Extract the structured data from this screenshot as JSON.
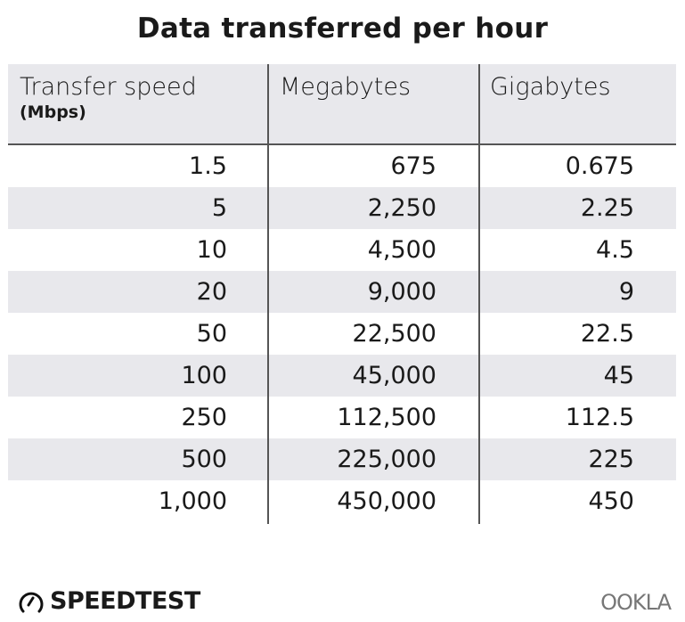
{
  "chart_data": {
    "type": "table",
    "title": "Data transferred per hour",
    "columns": [
      {
        "label": "Transfer speed",
        "sublabel": "(Mbps)"
      },
      {
        "label": "Megabytes"
      },
      {
        "label": "Gigabytes"
      }
    ],
    "rows": [
      [
        "1.5",
        "675",
        "0.675"
      ],
      [
        "5",
        "2,250",
        "2.25"
      ],
      [
        "10",
        "4,500",
        "4.5"
      ],
      [
        "20",
        "9,000",
        "9"
      ],
      [
        "50",
        "22,500",
        "22.5"
      ],
      [
        "100",
        "45,000",
        "45"
      ],
      [
        "250",
        "112,500",
        "112.5"
      ],
      [
        "500",
        "225,000",
        "225"
      ],
      [
        "1,000",
        "450,000",
        "450"
      ]
    ]
  },
  "colors": {
    "stripe": "#e8e8ec",
    "rule": "#555555"
  },
  "footer": {
    "brand": "SPEEDTEST",
    "brand_icon": "speedometer-icon",
    "partner": "OOKLA"
  }
}
